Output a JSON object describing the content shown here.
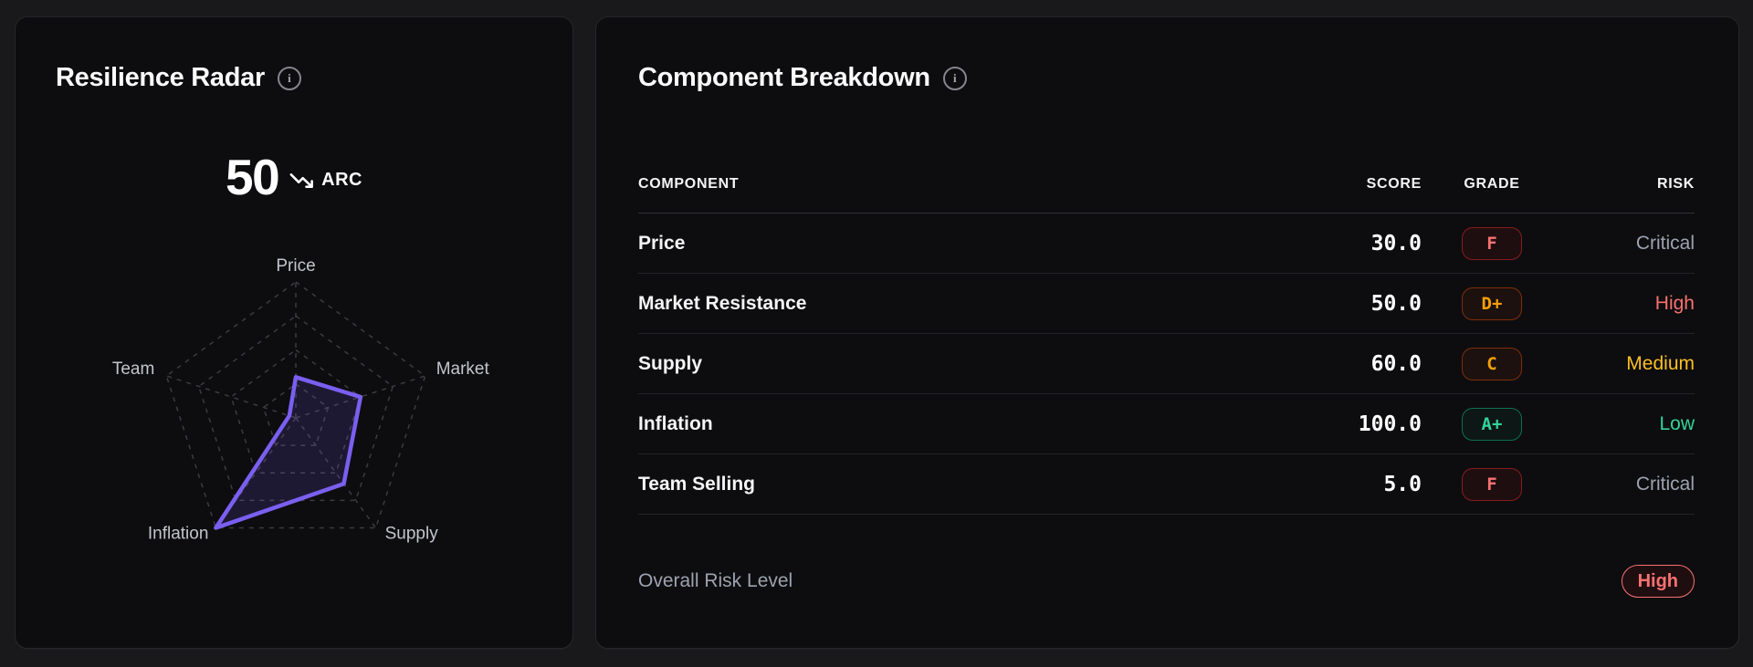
{
  "left_panel": {
    "title": "Resilience Radar",
    "score": "50",
    "score_unit": "ARC"
  },
  "right_panel": {
    "title": "Component Breakdown",
    "table": {
      "headers": [
        "COMPONENT",
        "SCORE",
        "GRADE",
        "RISK"
      ],
      "rows": [
        {
          "component": "Price",
          "score": "30.0",
          "grade": "F",
          "grade_theme": "red",
          "risk": "Critical",
          "risk_theme": "neutral"
        },
        {
          "component": "Market Resistance",
          "score": "50.0",
          "grade": "D+",
          "grade_theme": "orange",
          "risk": "High",
          "risk_theme": "red"
        },
        {
          "component": "Supply",
          "score": "60.0",
          "grade": "C",
          "grade_theme": "orange",
          "risk": "Medium",
          "risk_theme": "amber"
        },
        {
          "component": "Inflation",
          "score": "100.0",
          "grade": "A+",
          "grade_theme": "green",
          "risk": "Low",
          "risk_theme": "green"
        },
        {
          "component": "Team Selling",
          "score": "5.0",
          "grade": "F",
          "grade_theme": "red",
          "risk": "Critical",
          "risk_theme": "neutral"
        }
      ]
    },
    "footer": {
      "label": "Overall Risk Level",
      "badge": "High",
      "badge_theme": "red"
    }
  },
  "chart_data": {
    "type": "radar",
    "categories": [
      "Price",
      "Market",
      "Supply",
      "Inflation",
      "Team"
    ],
    "values": [
      30,
      50,
      60,
      100,
      5
    ],
    "max": 100,
    "rings_pct": [
      25,
      50,
      75,
      100
    ],
    "grid_style": "dashed",
    "stroke_color": "#7a5ff0",
    "fill_color": "rgba(122,95,240,0.16)",
    "grid_color": "#3b3b40",
    "axis_label_color": "#c2c5cb"
  },
  "colors": {
    "page_background": "#19191b",
    "panel_background": "#0d0d0f",
    "risk_critical": "#9ca3af",
    "risk_high": "#f87171",
    "risk_medium": "#fbbf24",
    "risk_low": "#34d399",
    "grade_red": "#f87171",
    "grade_orange": "#f59e0b",
    "grade_green": "#34d399",
    "accent_purple": "#7a5ff0"
  }
}
